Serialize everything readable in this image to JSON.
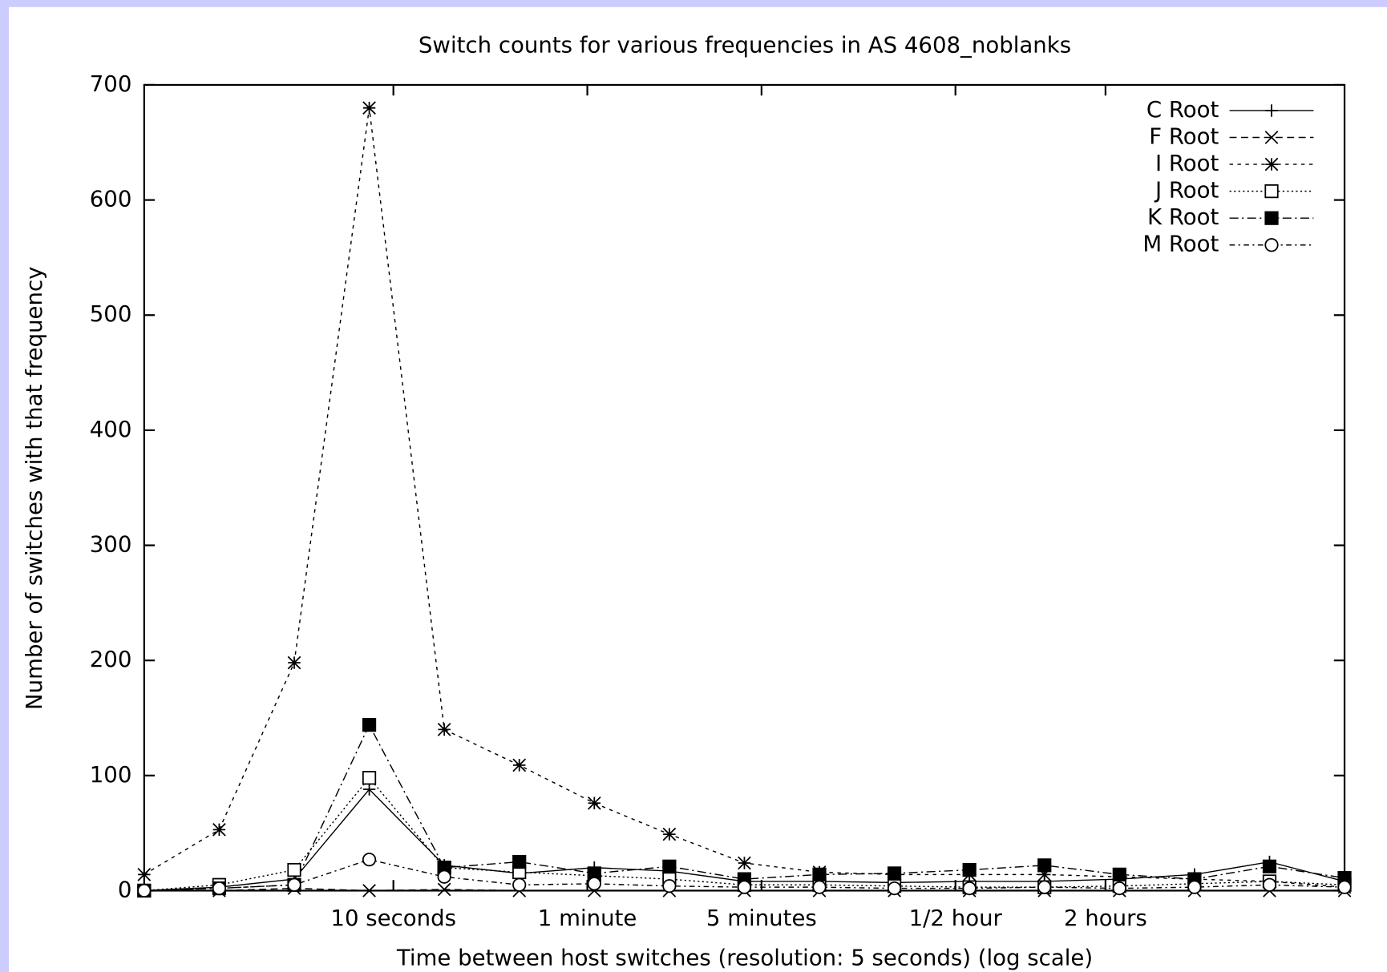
{
  "chart_data": {
    "type": "line",
    "title": "Switch counts for various frequencies in AS 4608_noblanks",
    "xlabel": "Time between host switches (resolution: 5 seconds) (log scale)",
    "ylabel": "Number of switches with that frequency",
    "xscale": "log",
    "x": [
      1,
      2,
      4,
      8,
      16,
      32,
      64,
      128,
      256,
      512,
      1024,
      2048,
      4096,
      8192,
      16384,
      32768,
      65536
    ],
    "xlim": [
      1,
      65536
    ],
    "xticks": [
      {
        "value": 10,
        "label": "10 seconds"
      },
      {
        "value": 60,
        "label": "1 minute"
      },
      {
        "value": 300,
        "label": "5 minutes"
      },
      {
        "value": 1800,
        "label": "1/2 hour"
      },
      {
        "value": 7200,
        "label": "2 hours"
      }
    ],
    "ylim": [
      0,
      700
    ],
    "yticks": [
      0,
      100,
      200,
      300,
      400,
      500,
      600,
      700
    ],
    "legend": "upper right",
    "series": [
      {
        "name": "C Root",
        "color": "#000000",
        "values": [
          0,
          3,
          10,
          88,
          22,
          15,
          20,
          17,
          8,
          8,
          7,
          8,
          8,
          10,
          14,
          25,
          8
        ]
      },
      {
        "name": "F Root",
        "color": "#000000",
        "values": [
          0,
          0,
          2,
          0,
          1,
          0,
          0,
          0,
          0,
          0,
          0,
          0,
          0,
          0,
          0,
          0,
          0
        ]
      },
      {
        "name": "I Root",
        "color": "#000000",
        "values": [
          14,
          53,
          198,
          680,
          140,
          109,
          76,
          49,
          24,
          16,
          14,
          14,
          14,
          12,
          10,
          8,
          3
        ]
      },
      {
        "name": "J Root",
        "color": "#000000",
        "values": [
          0,
          5,
          18,
          98,
          20,
          16,
          13,
          10,
          5,
          5,
          4,
          3,
          3,
          4,
          6,
          8,
          5
        ]
      },
      {
        "name": "K Root",
        "color": "#000000",
        "values": [
          0,
          2,
          5,
          144,
          20,
          25,
          15,
          21,
          10,
          14,
          15,
          18,
          22,
          14,
          10,
          21,
          11
        ]
      },
      {
        "name": "M Root",
        "color": "#000000",
        "values": [
          0,
          2,
          5,
          27,
          12,
          5,
          6,
          4,
          3,
          3,
          2,
          2,
          3,
          2,
          3,
          5,
          3
        ]
      }
    ]
  }
}
